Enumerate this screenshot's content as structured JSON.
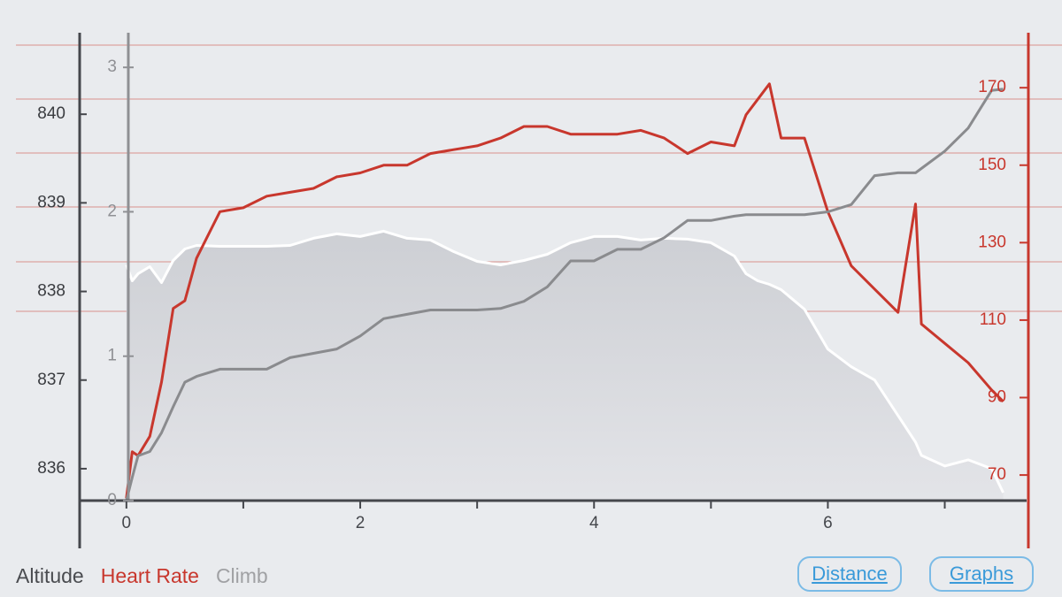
{
  "chart_data": {
    "type": "line",
    "x": [
      0,
      0.05,
      0.1,
      0.2,
      0.3,
      0.4,
      0.5,
      0.6,
      0.8,
      1.0,
      1.2,
      1.4,
      1.6,
      1.8,
      2.0,
      2.2,
      2.4,
      2.6,
      2.8,
      3.0,
      3.2,
      3.4,
      3.6,
      3.8,
      4.0,
      4.2,
      4.4,
      4.6,
      4.8,
      5.0,
      5.2,
      5.3,
      5.4,
      5.5,
      5.6,
      5.8,
      6.0,
      6.2,
      6.4,
      6.6,
      6.75,
      6.8,
      7.0,
      7.2,
      7.4,
      7.5
    ],
    "xlim": [
      -0.4,
      7.7
    ],
    "xticks": [
      0,
      2,
      4,
      6
    ],
    "xminorticks": [
      1,
      3,
      5,
      7
    ],
    "ylim": [
      835.64,
      840.92
    ],
    "yticks": [
      836,
      837,
      838,
      839,
      840
    ],
    "y2lim": [
      63.4,
      184.2
    ],
    "y2ticks": [
      70,
      90,
      110,
      130,
      150,
      170
    ],
    "y3lim": [
      0,
      3.24
    ],
    "y3ticks": [
      0,
      1,
      2,
      3
    ],
    "series": [
      {
        "name": "Altitude",
        "color": "#ffffff",
        "label_color": "#4a4c50",
        "area": true,
        "values": [
          838.3,
          838.12,
          838.2,
          838.28,
          838.1,
          838.35,
          838.48,
          838.52,
          838.51,
          838.51,
          838.51,
          838.52,
          838.6,
          838.65,
          838.62,
          838.68,
          838.6,
          838.58,
          838.45,
          838.34,
          838.3,
          838.35,
          838.42,
          838.55,
          838.62,
          838.62,
          838.58,
          838.6,
          838.59,
          838.55,
          838.4,
          838.2,
          838.12,
          838.08,
          838.02,
          837.8,
          837.35,
          837.15,
          837.0,
          836.6,
          836.3,
          836.15,
          836.03,
          836.1,
          836.0,
          835.73
        ]
      },
      {
        "name": "Heart Rate",
        "color": "#c8372d",
        "label_color": "#c8372d",
        "axis": "y2",
        "values": [
          64,
          76,
          75,
          80,
          94,
          113,
          115,
          126,
          138,
          139,
          142,
          143,
          144,
          147,
          148,
          150,
          150,
          153,
          154,
          155,
          157,
          160,
          160,
          158,
          158,
          158,
          159,
          157,
          153,
          156,
          155,
          163,
          167,
          171,
          157,
          157,
          138,
          124,
          118,
          112,
          140,
          109,
          104,
          99,
          92,
          89
        ]
      },
      {
        "name": "Climb",
        "color": "#8a8b8e",
        "label_color": "#a0a1a4",
        "axis": "y3",
        "values": [
          0,
          0.16,
          0.31,
          0.34,
          0.47,
          0.65,
          0.82,
          0.86,
          0.91,
          0.91,
          0.91,
          0.99,
          1.02,
          1.05,
          1.14,
          1.26,
          1.29,
          1.32,
          1.32,
          1.32,
          1.33,
          1.38,
          1.48,
          1.66,
          1.66,
          1.74,
          1.74,
          1.82,
          1.94,
          1.94,
          1.97,
          1.98,
          1.98,
          1.98,
          1.98,
          1.98,
          2.0,
          2.05,
          2.25,
          2.27,
          2.27,
          2.3,
          2.42,
          2.58,
          2.84,
          2.85
        ]
      }
    ]
  },
  "controls": {
    "distance": "Distance",
    "graphs": "Graphs"
  }
}
